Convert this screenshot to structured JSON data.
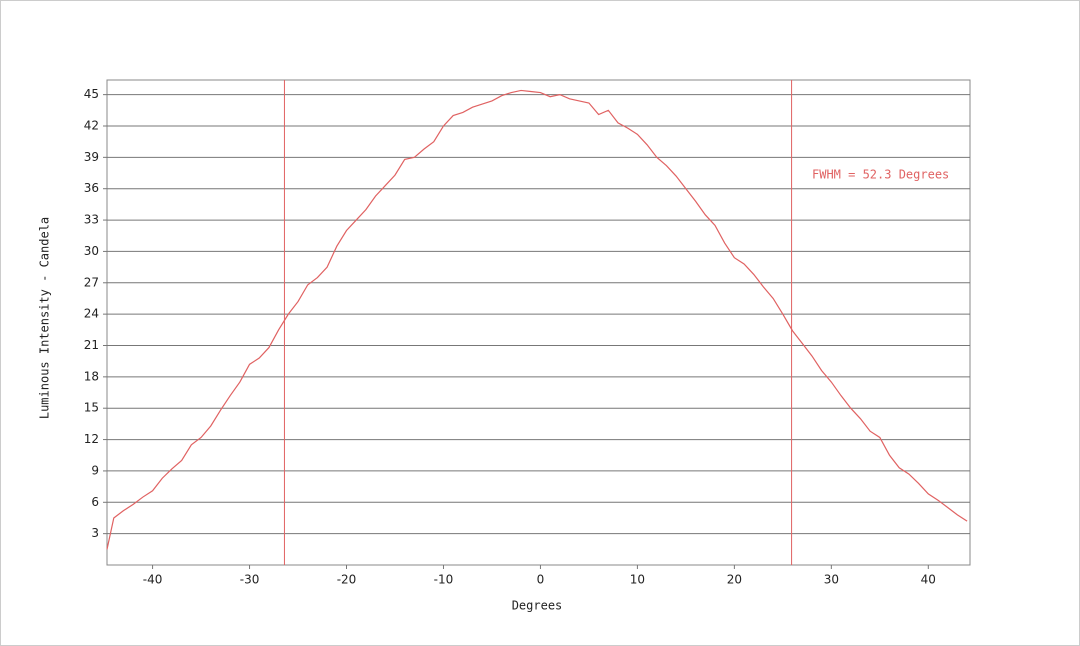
{
  "chart_data": {
    "type": "line",
    "x_label": "Degrees",
    "y_label": "Luminous Intensity - Candela",
    "annotation": "FWHM = 52.3 Degrees",
    "x": [
      -44.7,
      -44,
      -43,
      -42,
      -41,
      -40,
      -39,
      -38,
      -37,
      -36,
      -35,
      -34,
      -33,
      -32,
      -31,
      -30,
      -29,
      -28,
      -27,
      -26,
      -25,
      -24,
      -23,
      -22,
      -21,
      -20,
      -19,
      -18,
      -17,
      -16,
      -15,
      -14,
      -13,
      -12,
      -11,
      -10,
      -9,
      -8,
      -7,
      -6,
      -5,
      -4,
      -3,
      -2,
      -1,
      0,
      1,
      2,
      3,
      4,
      5,
      6,
      7,
      8,
      9,
      10,
      11,
      12,
      13,
      14,
      15,
      16,
      17,
      18,
      19,
      20,
      21,
      22,
      23,
      24,
      25,
      26,
      27,
      28,
      29,
      30,
      31,
      32,
      33,
      34,
      35,
      36,
      37,
      38,
      39,
      40,
      41,
      42,
      43,
      44
    ],
    "series": [
      {
        "name": "Luminous Intensity",
        "color": "#e06262",
        "values": [
          1.5,
          4.5,
          5.2,
          5.8,
          6.5,
          7.1,
          8.3,
          9.2,
          10.0,
          11.5,
          12.2,
          13.3,
          14.8,
          16.2,
          17.5,
          19.2,
          19.8,
          20.8,
          22.5,
          24.0,
          25.2,
          26.8,
          27.5,
          28.5,
          30.5,
          32.0,
          33.0,
          34.0,
          35.3,
          36.3,
          37.3,
          38.8,
          39.0,
          39.8,
          40.5,
          42.0,
          43.0,
          43.3,
          43.8,
          44.1,
          44.4,
          44.9,
          45.2,
          45.4,
          45.3,
          45.2,
          44.8,
          45.0,
          44.6,
          44.4,
          44.2,
          43.1,
          43.5,
          42.3,
          41.8,
          41.2,
          40.2,
          39.0,
          38.2,
          37.2,
          36.0,
          34.8,
          33.5,
          32.5,
          30.8,
          29.4,
          28.8,
          27.8,
          26.6,
          25.5,
          24.0,
          22.4,
          21.2,
          20.0,
          18.6,
          17.5,
          16.2,
          15.0,
          14.0,
          12.8,
          12.2,
          10.5,
          9.3,
          8.7,
          7.8,
          6.8,
          6.2,
          5.5,
          4.8,
          4.2
        ]
      }
    ],
    "vlines": [
      -26.4,
      25.9
    ],
    "xlim": [
      -44.7,
      44.3
    ],
    "ylim": [
      0,
      46.4
    ],
    "xticks": [
      -40,
      -30,
      -20,
      -10,
      0,
      10,
      20,
      30,
      40
    ],
    "yticks": [
      3,
      6,
      9,
      12,
      15,
      18,
      21,
      24,
      27,
      30,
      33,
      36,
      39,
      42,
      45
    ],
    "grid": true
  }
}
